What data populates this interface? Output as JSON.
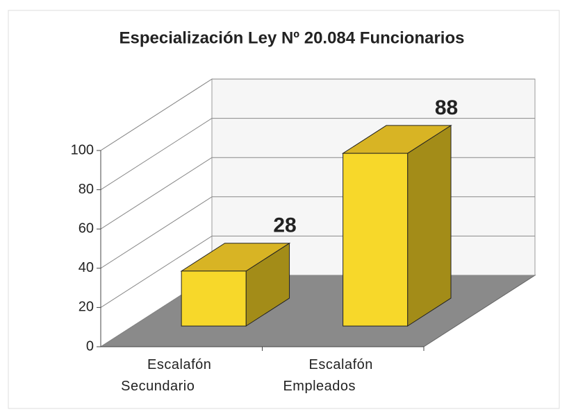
{
  "chart_data": {
    "type": "bar3d",
    "title": "Especialización Ley Nº 20.084 Funcionarios",
    "categories": [
      "Escalafón Secundario",
      "Escalafón Empleados"
    ],
    "values": [
      28,
      88
    ],
    "color": "#f7d82a",
    "value_label_color": "#4a6fc0",
    "ylim": [
      0,
      100
    ],
    "yticks": [
      0,
      20,
      40,
      60,
      80,
      100
    ],
    "grid": true
  }
}
